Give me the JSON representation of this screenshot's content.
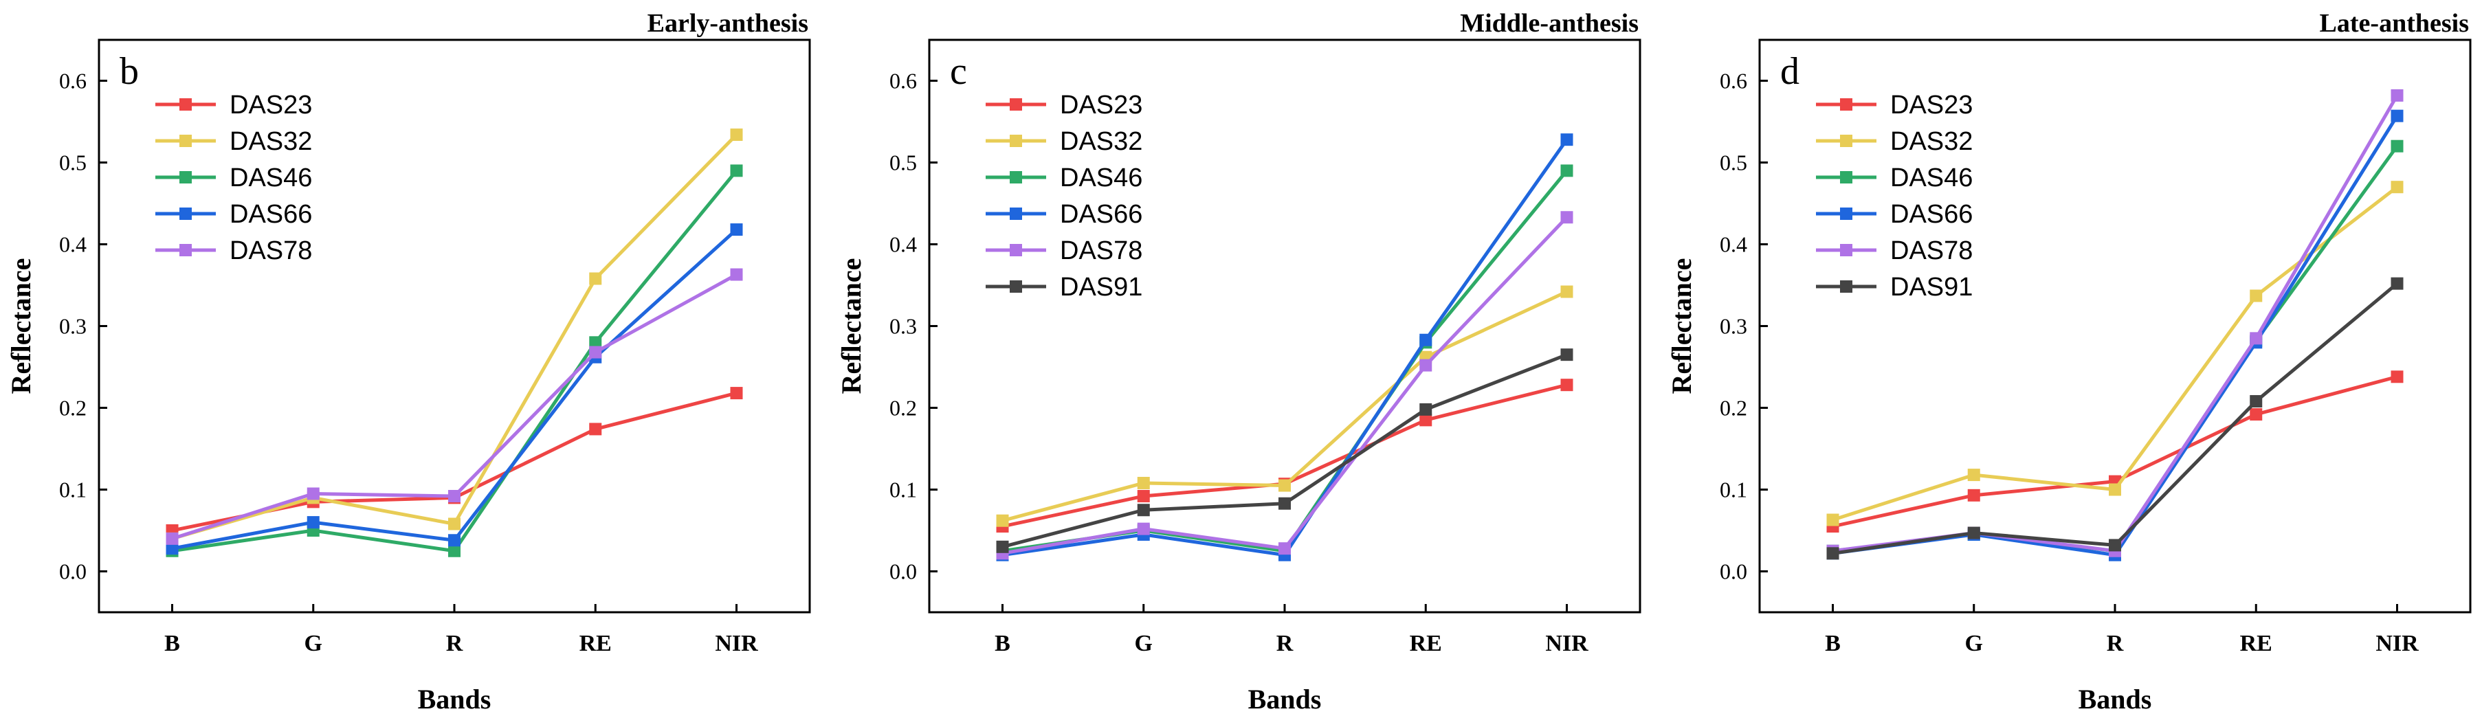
{
  "chart_data": [
    {
      "type": "line",
      "letter": "b",
      "title": "Early-anthesis",
      "xlabel": "Bands",
      "ylabel": "Reflectance",
      "categories": [
        "B",
        "G",
        "R",
        "RE",
        "NIR"
      ],
      "yticks": [
        "0.0",
        "0.1",
        "0.2",
        "0.3",
        "0.4",
        "0.5",
        "0.6"
      ],
      "ylim": [
        -0.05,
        0.65
      ],
      "legend_position": "top-left",
      "series": [
        {
          "name": "DAS23",
          "color": "#EE4444",
          "values": [
            0.05,
            0.085,
            0.09,
            0.174,
            0.218
          ]
        },
        {
          "name": "DAS32",
          "color": "#E8CC55",
          "values": [
            0.04,
            0.09,
            0.058,
            0.358,
            0.534
          ]
        },
        {
          "name": "DAS46",
          "color": "#2EAA66",
          "values": [
            0.025,
            0.05,
            0.025,
            0.28,
            0.49
          ]
        },
        {
          "name": "DAS66",
          "color": "#1F66DD",
          "values": [
            0.028,
            0.06,
            0.038,
            0.262,
            0.418
          ]
        },
        {
          "name": "DAS78",
          "color": "#AF72E6",
          "values": [
            0.04,
            0.095,
            0.092,
            0.268,
            0.363
          ]
        }
      ]
    },
    {
      "type": "line",
      "letter": "c",
      "title": "Middle-anthesis",
      "xlabel": "Bands",
      "ylabel": "Reflectance",
      "categories": [
        "B",
        "G",
        "R",
        "RE",
        "NIR"
      ],
      "yticks": [
        "0.0",
        "0.1",
        "0.2",
        "0.3",
        "0.4",
        "0.5",
        "0.6"
      ],
      "ylim": [
        -0.05,
        0.65
      ],
      "legend_position": "top-left",
      "series": [
        {
          "name": "DAS23",
          "color": "#EE4444",
          "values": [
            0.055,
            0.092,
            0.107,
            0.185,
            0.228
          ]
        },
        {
          "name": "DAS32",
          "color": "#E8CC55",
          "values": [
            0.062,
            0.108,
            0.105,
            0.262,
            0.342
          ]
        },
        {
          "name": "DAS46",
          "color": "#2EAA66",
          "values": [
            0.025,
            0.05,
            0.025,
            0.28,
            0.49
          ]
        },
        {
          "name": "DAS66",
          "color": "#1F66DD",
          "values": [
            0.02,
            0.045,
            0.02,
            0.283,
            0.528
          ]
        },
        {
          "name": "DAS78",
          "color": "#AF72E6",
          "values": [
            0.022,
            0.052,
            0.028,
            0.252,
            0.433
          ]
        },
        {
          "name": "DAS91",
          "color": "#444444",
          "values": [
            0.03,
            0.075,
            0.083,
            0.198,
            0.265
          ]
        }
      ]
    },
    {
      "type": "line",
      "letter": "d",
      "title": "Late-anthesis",
      "xlabel": "Bands",
      "ylabel": "Reflectance",
      "categories": [
        "B",
        "G",
        "R",
        "RE",
        "NIR"
      ],
      "yticks": [
        "0.0",
        "0.1",
        "0.2",
        "0.3",
        "0.4",
        "0.5",
        "0.6"
      ],
      "ylim": [
        -0.05,
        0.65
      ],
      "legend_position": "top-left",
      "series": [
        {
          "name": "DAS23",
          "color": "#EE4444",
          "values": [
            0.055,
            0.093,
            0.11,
            0.192,
            0.238
          ]
        },
        {
          "name": "DAS32",
          "color": "#E8CC55",
          "values": [
            0.063,
            0.118,
            0.1,
            0.337,
            0.47
          ]
        },
        {
          "name": "DAS46",
          "color": "#2EAA66",
          "values": [
            0.025,
            0.045,
            0.025,
            0.282,
            0.52
          ]
        },
        {
          "name": "DAS66",
          "color": "#1F66DD",
          "values": [
            0.022,
            0.045,
            0.02,
            0.28,
            0.557
          ]
        },
        {
          "name": "DAS78",
          "color": "#AF72E6",
          "values": [
            0.025,
            0.047,
            0.025,
            0.285,
            0.582
          ]
        },
        {
          "name": "DAS91",
          "color": "#444444",
          "values": [
            0.022,
            0.047,
            0.032,
            0.208,
            0.352
          ]
        }
      ]
    }
  ]
}
